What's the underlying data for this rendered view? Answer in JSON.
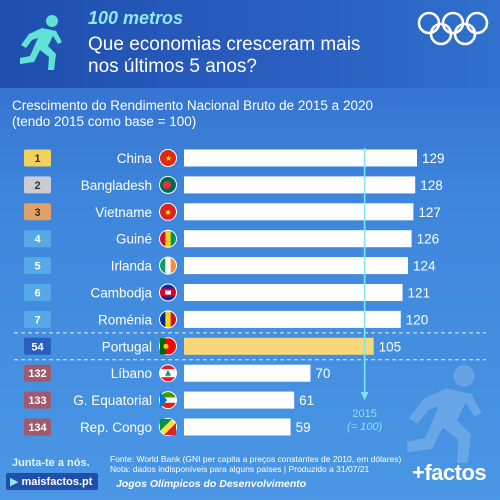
{
  "header": {
    "subtitle": "100 metros",
    "title": "Que economias cresceram mais nos últimos 5 anos?"
  },
  "chart_data": {
    "type": "bar",
    "title": "Crescimento do Rendimento Nacional Bruto de 2015 a 2020",
    "subtitle": "(tendo 2015 como base = 100)",
    "orientation": "horizontal",
    "ranks": [
      "1",
      "2",
      "3",
      "4",
      "5",
      "6",
      "7",
      "54",
      "132",
      "133",
      "134"
    ],
    "categories": [
      "China",
      "Bangladesh",
      "Vietname",
      "Guiné",
      "Irlanda",
      "Cambodja",
      "Roménia",
      "Portugal",
      "Líbano",
      "G. Equatorial",
      "Rep. Congo"
    ],
    "values": [
      129,
      128,
      127,
      126,
      124,
      121,
      120,
      105,
      70,
      61,
      59
    ],
    "xlim": [
      0,
      129
    ],
    "highlight": "Portugal",
    "reference_line": {
      "value": 100,
      "label_year": "2015",
      "label_base": "(= 100)"
    },
    "grid": false,
    "colors": {
      "bar": "#ffffff",
      "bar_highlight": "#f8d878",
      "rank_gold": "#f2d15c",
      "rank_silver": "#c9cdd3",
      "rank_bronze": "#e0a264",
      "rank_top": "#55a9e6",
      "rank_portugal": "#2a5fc0",
      "rank_bottom": "#a05a6e",
      "reference": "#7de6f5"
    },
    "flag_icons": [
      "china-flag-icon",
      "bangladesh-flag-icon",
      "vietnam-flag-icon",
      "guinea-flag-icon",
      "ireland-flag-icon",
      "cambodia-flag-icon",
      "romania-flag-icon",
      "portugal-flag-icon",
      "lebanon-flag-icon",
      "equatorial-guinea-flag-icon",
      "congo-flag-icon"
    ]
  },
  "footer": {
    "cta": "Junta-te a nós.",
    "link": "maisfactos.pt",
    "source": "Fonte: World Bank (GNI per capita a preços constantes de 2010, em dólares)",
    "note": "Nota: dados indisponíveis para alguns países | Produzido a 31/07/21",
    "games": "Jogos Olímpicos do Desenvolvimento",
    "brand": "+factos"
  }
}
